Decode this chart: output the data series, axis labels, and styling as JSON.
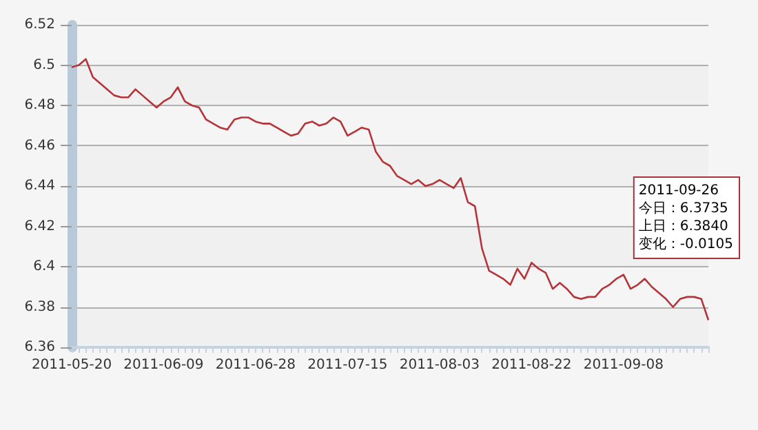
{
  "chart_data": {
    "type": "line",
    "categories": [
      "2011-05-20",
      null,
      null,
      null,
      null,
      null,
      null,
      null,
      null,
      null,
      null,
      null,
      null,
      "2011-06-09",
      null,
      null,
      null,
      null,
      null,
      null,
      null,
      null,
      null,
      null,
      null,
      null,
      "2011-06-28",
      null,
      null,
      null,
      null,
      null,
      null,
      null,
      null,
      null,
      null,
      null,
      null,
      "2011-07-15",
      null,
      null,
      null,
      null,
      null,
      null,
      null,
      null,
      null,
      null,
      null,
      null,
      "2011-08-03",
      null,
      null,
      null,
      null,
      null,
      null,
      null,
      null,
      null,
      null,
      null,
      null,
      "2011-08-22",
      null,
      null,
      null,
      null,
      null,
      null,
      null,
      null,
      null,
      null,
      null,
      null,
      "2011-09-08",
      null,
      null,
      null,
      null,
      null,
      null,
      null,
      null,
      null,
      null,
      null,
      null
    ],
    "series": [
      {
        "color": "#b5343a",
        "values": [
          6.499,
          6.5,
          6.503,
          6.494,
          6.491,
          6.488,
          6.485,
          6.484,
          6.484,
          6.488,
          6.485,
          6.482,
          6.479,
          6.482,
          6.484,
          6.489,
          6.482,
          6.48,
          6.479,
          6.473,
          6.471,
          6.469,
          6.468,
          6.473,
          6.474,
          6.474,
          6.472,
          6.471,
          6.471,
          6.469,
          6.467,
          6.465,
          6.466,
          6.471,
          6.472,
          6.47,
          6.471,
          6.474,
          6.472,
          6.465,
          6.467,
          6.469,
          6.468,
          6.457,
          6.452,
          6.45,
          6.445,
          6.443,
          6.441,
          6.443,
          6.44,
          6.441,
          6.443,
          6.441,
          6.439,
          6.444,
          6.432,
          6.43,
          6.409,
          6.398,
          6.396,
          6.394,
          6.391,
          6.399,
          6.394,
          6.402,
          6.399,
          6.397,
          6.389,
          6.392,
          6.389,
          6.385,
          6.384,
          6.385,
          6.385,
          6.389,
          6.391,
          6.394,
          6.396,
          6.389,
          6.391,
          6.394,
          6.39,
          6.387,
          6.384,
          6.38,
          6.384,
          6.385,
          6.385,
          6.384,
          6.3735
        ]
      }
    ],
    "ylim": [
      6.36,
      6.52
    ],
    "yticks": [
      6.36,
      6.38,
      6.4,
      6.42,
      6.44,
      6.46,
      6.48,
      6.5,
      6.52
    ],
    "grid": "y",
    "marker": "none",
    "line_style": "solid",
    "annotations": [
      "2011-09-26",
      "今日：6.3735",
      "上日：6.3840",
      "变化：-0.0105"
    ]
  }
}
